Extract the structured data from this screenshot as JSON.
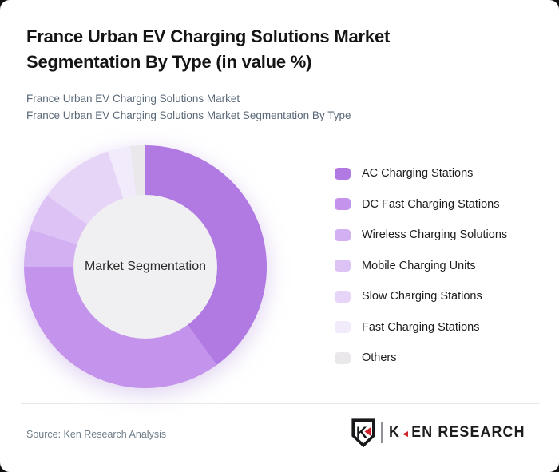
{
  "header": {
    "title_line1": "France Urban EV Charging Solutions Market",
    "title_line2": "Segmentation By Type (in value %)",
    "subtitle_line1": "France Urban EV Charging Solutions Market",
    "subtitle_line2": "France Urban EV Charging Solutions Market Segmentation By Type"
  },
  "chart_data": {
    "type": "pie",
    "donut": true,
    "title": "France Urban EV Charging Solutions Market Segmentation By Type (in value %)",
    "center_label": "Market Segmentation",
    "legend_position": "right",
    "start_angle_deg": 0,
    "direction": "clockwise",
    "units": "percent of market value",
    "series": [
      {
        "name": "AC Charging Stations",
        "value": 40,
        "color": "#b17ae2"
      },
      {
        "name": "DC Fast Charging Stations",
        "value": 35,
        "color": "#c493ec"
      },
      {
        "name": "Wireless Charging Solutions",
        "value": 5,
        "color": "#d3b0f1"
      },
      {
        "name": "Mobile Charging Units",
        "value": 5,
        "color": "#ddc3f5"
      },
      {
        "name": "Slow Charging Stations",
        "value": 10,
        "color": "#e7d5f8"
      },
      {
        "name": "Fast Charging Stations",
        "value": 3,
        "color": "#f2ebfc"
      },
      {
        "name": "Others",
        "value": 2,
        "color": "#eae8eb"
      }
    ],
    "hole_color": "#f0eff1"
  },
  "footer": {
    "source": "Source: Ken Research Analysis",
    "logo": {
      "shield_letter": "K",
      "word_part1": "K",
      "word_part2": "EN RESEARCH",
      "accent_color": "#cf2128"
    }
  }
}
